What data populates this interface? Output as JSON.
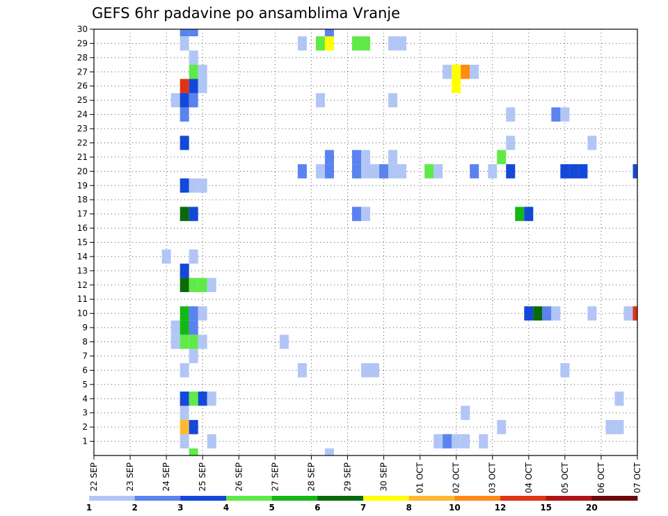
{
  "chart_data": {
    "type": "heatmap",
    "title": "GEFS 6hr padavine po ansamblima Vranje",
    "x_ticks": [
      "22 SEP",
      "23 SEP",
      "24 SEP",
      "25 SEP",
      "26 SEP",
      "27 SEP",
      "28 SEP",
      "29 SEP",
      "30 SEP",
      "01 OCT",
      "02 OCT",
      "03 OCT",
      "04 OCT",
      "05 OCT",
      "06 OCT",
      "07 OCT"
    ],
    "y_ticks": [
      1,
      2,
      3,
      4,
      5,
      6,
      7,
      8,
      9,
      10,
      11,
      12,
      13,
      14,
      15,
      16,
      17,
      18,
      19,
      20,
      21,
      22,
      23,
      24,
      25,
      26,
      27,
      28,
      29,
      30
    ],
    "xlim_steps": [
      0,
      60
    ],
    "ylim": [
      0,
      30
    ],
    "grid": true,
    "colorbar": {
      "labels": [
        "1",
        "2",
        "3",
        "4",
        "5",
        "6",
        "7",
        "8",
        "10",
        "12",
        "15",
        "20"
      ],
      "colors": [
        "#b2c6f5",
        "#5a83f0",
        "#1448d8",
        "#5fea48",
        "#14b814",
        "#0a6a0a",
        "#ffff00",
        "#ffb830",
        "#ff8a14",
        "#e03214",
        "#b01414",
        "#6e0a0a"
      ]
    },
    "cells": [
      {
        "m": 1,
        "t": 10,
        "c": 1
      },
      {
        "m": 1,
        "t": 13,
        "c": 1
      },
      {
        "m": 1,
        "t": 40,
        "c": 1
      },
      {
        "m": 1,
        "t": 43,
        "c": 1
      },
      {
        "m": 1,
        "t": 38,
        "c": 1
      },
      {
        "m": 1,
        "t": 39,
        "c": 2
      },
      {
        "m": 1,
        "t": 41,
        "c": 1
      },
      {
        "m": 2,
        "t": 10,
        "c": 8
      },
      {
        "m": 2,
        "t": 11,
        "c": 3
      },
      {
        "m": 2,
        "t": 45,
        "c": 1
      },
      {
        "m": 2,
        "t": 57,
        "c": 1
      },
      {
        "m": 2,
        "t": 58,
        "c": 1
      },
      {
        "m": 3,
        "t": 10,
        "c": 1
      },
      {
        "m": 3,
        "t": 41,
        "c": 1
      },
      {
        "m": 4,
        "t": 10,
        "c": 3
      },
      {
        "m": 4,
        "t": 11,
        "c": 4
      },
      {
        "m": 4,
        "t": 12,
        "c": 3
      },
      {
        "m": 4,
        "t": 13,
        "c": 1
      },
      {
        "m": 4,
        "t": 58,
        "c": 1
      },
      {
        "m": 6,
        "t": 10,
        "c": 1
      },
      {
        "m": 6,
        "t": 23,
        "c": 1
      },
      {
        "m": 6,
        "t": 30,
        "c": 1
      },
      {
        "m": 6,
        "t": 31,
        "c": 1
      },
      {
        "m": 6,
        "t": 52,
        "c": 1
      },
      {
        "m": 7,
        "t": 11,
        "c": 1
      },
      {
        "m": 8,
        "t": 9,
        "c": 1
      },
      {
        "m": 8,
        "t": 10,
        "c": 4
      },
      {
        "m": 8,
        "t": 11,
        "c": 4
      },
      {
        "m": 8,
        "t": 12,
        "c": 1
      },
      {
        "m": 8,
        "t": 21,
        "c": 1
      },
      {
        "m": 9,
        "t": 9,
        "c": 1
      },
      {
        "m": 9,
        "t": 10,
        "c": 5
      },
      {
        "m": 9,
        "t": 11,
        "c": 2
      },
      {
        "m": 10,
        "t": 10,
        "c": 5
      },
      {
        "m": 10,
        "t": 11,
        "c": 2
      },
      {
        "m": 10,
        "t": 12,
        "c": 1
      },
      {
        "m": 10,
        "t": 48,
        "c": 3
      },
      {
        "m": 10,
        "t": 49,
        "c": 6
      },
      {
        "m": 10,
        "t": 50,
        "c": 2
      },
      {
        "m": 10,
        "t": 51,
        "c": 1
      },
      {
        "m": 10,
        "t": 55,
        "c": 1
      },
      {
        "m": 10,
        "t": 59,
        "c": 1
      },
      {
        "m": 10,
        "t": 60,
        "c": 10
      },
      {
        "m": 12,
        "t": 10,
        "c": 6
      },
      {
        "m": 12,
        "t": 11,
        "c": 4
      },
      {
        "m": 12,
        "t": 12,
        "c": 4
      },
      {
        "m": 12,
        "t": 13,
        "c": 1
      },
      {
        "m": 13,
        "t": 10,
        "c": 3
      },
      {
        "m": 14,
        "t": 8,
        "c": 1
      },
      {
        "m": 14,
        "t": 11,
        "c": 1
      },
      {
        "m": 17,
        "t": 10,
        "c": 6
      },
      {
        "m": 17,
        "t": 11,
        "c": 3
      },
      {
        "m": 17,
        "t": 29,
        "c": 2
      },
      {
        "m": 17,
        "t": 30,
        "c": 1
      },
      {
        "m": 17,
        "t": 47,
        "c": 5
      },
      {
        "m": 17,
        "t": 48,
        "c": 3
      },
      {
        "m": 19,
        "t": 10,
        "c": 3
      },
      {
        "m": 19,
        "t": 11,
        "c": 1
      },
      {
        "m": 19,
        "t": 12,
        "c": 1
      },
      {
        "m": 20,
        "t": 23,
        "c": 2
      },
      {
        "m": 20,
        "t": 25,
        "c": 1
      },
      {
        "m": 20,
        "t": 26,
        "c": 2
      },
      {
        "m": 20,
        "t": 29,
        "c": 2
      },
      {
        "m": 20,
        "t": 30,
        "c": 1
      },
      {
        "m": 20,
        "t": 31,
        "c": 1
      },
      {
        "m": 20,
        "t": 32,
        "c": 2
      },
      {
        "m": 20,
        "t": 33,
        "c": 1
      },
      {
        "m": 20,
        "t": 34,
        "c": 1
      },
      {
        "m": 20,
        "t": 37,
        "c": 4
      },
      {
        "m": 20,
        "t": 38,
        "c": 1
      },
      {
        "m": 20,
        "t": 42,
        "c": 2
      },
      {
        "m": 20,
        "t": 44,
        "c": 1
      },
      {
        "m": 20,
        "t": 46,
        "c": 3
      },
      {
        "m": 20,
        "t": 52,
        "c": 3
      },
      {
        "m": 20,
        "t": 53,
        "c": 3
      },
      {
        "m": 20,
        "t": 54,
        "c": 3
      },
      {
        "m": 20,
        "t": 60,
        "c": 3
      },
      {
        "m": 21,
        "t": 26,
        "c": 2
      },
      {
        "m": 21,
        "t": 29,
        "c": 2
      },
      {
        "m": 21,
        "t": 30,
        "c": 1
      },
      {
        "m": 21,
        "t": 33,
        "c": 1
      },
      {
        "m": 21,
        "t": 45,
        "c": 4
      },
      {
        "m": 22,
        "t": 10,
        "c": 3
      },
      {
        "m": 22,
        "t": 46,
        "c": 1
      },
      {
        "m": 22,
        "t": 55,
        "c": 1
      },
      {
        "m": 24,
        "t": 10,
        "c": 2
      },
      {
        "m": 24,
        "t": 46,
        "c": 1
      },
      {
        "m": 24,
        "t": 51,
        "c": 2
      },
      {
        "m": 24,
        "t": 52,
        "c": 1
      },
      {
        "m": 25,
        "t": 9,
        "c": 1
      },
      {
        "m": 25,
        "t": 10,
        "c": 3
      },
      {
        "m": 25,
        "t": 11,
        "c": 2
      },
      {
        "m": 25,
        "t": 25,
        "c": 1
      },
      {
        "m": 25,
        "t": 33,
        "c": 1
      },
      {
        "m": 26,
        "t": 10,
        "c": 10
      },
      {
        "m": 26,
        "t": 11,
        "c": 3
      },
      {
        "m": 26,
        "t": 12,
        "c": 1
      },
      {
        "m": 26,
        "t": 40,
        "c": 7
      },
      {
        "m": 27,
        "t": 11,
        "c": 4
      },
      {
        "m": 27,
        "t": 12,
        "c": 1
      },
      {
        "m": 27,
        "t": 39,
        "c": 1
      },
      {
        "m": 27,
        "t": 40,
        "c": 7
      },
      {
        "m": 27,
        "t": 41,
        "c": 9
      },
      {
        "m": 27,
        "t": 42,
        "c": 1
      },
      {
        "m": 28,
        "t": 11,
        "c": 1
      },
      {
        "m": 29,
        "t": 10,
        "c": 1
      },
      {
        "m": 29,
        "t": 23,
        "c": 1
      },
      {
        "m": 29,
        "t": 25,
        "c": 4
      },
      {
        "m": 29,
        "t": 26,
        "c": 7
      },
      {
        "m": 29,
        "t": 29,
        "c": 4
      },
      {
        "m": 29,
        "t": 30,
        "c": 4
      },
      {
        "m": 29,
        "t": 33,
        "c": 1
      },
      {
        "m": 29,
        "t": 34,
        "c": 1
      },
      {
        "m": 30,
        "t": 10,
        "c": 2
      },
      {
        "m": 30,
        "t": 11,
        "c": 2
      },
      {
        "m": 30,
        "t": 26,
        "c": 2
      },
      {
        "m": 0,
        "t": 11,
        "c": 4
      },
      {
        "m": 0,
        "t": 26,
        "c": 1
      }
    ]
  }
}
